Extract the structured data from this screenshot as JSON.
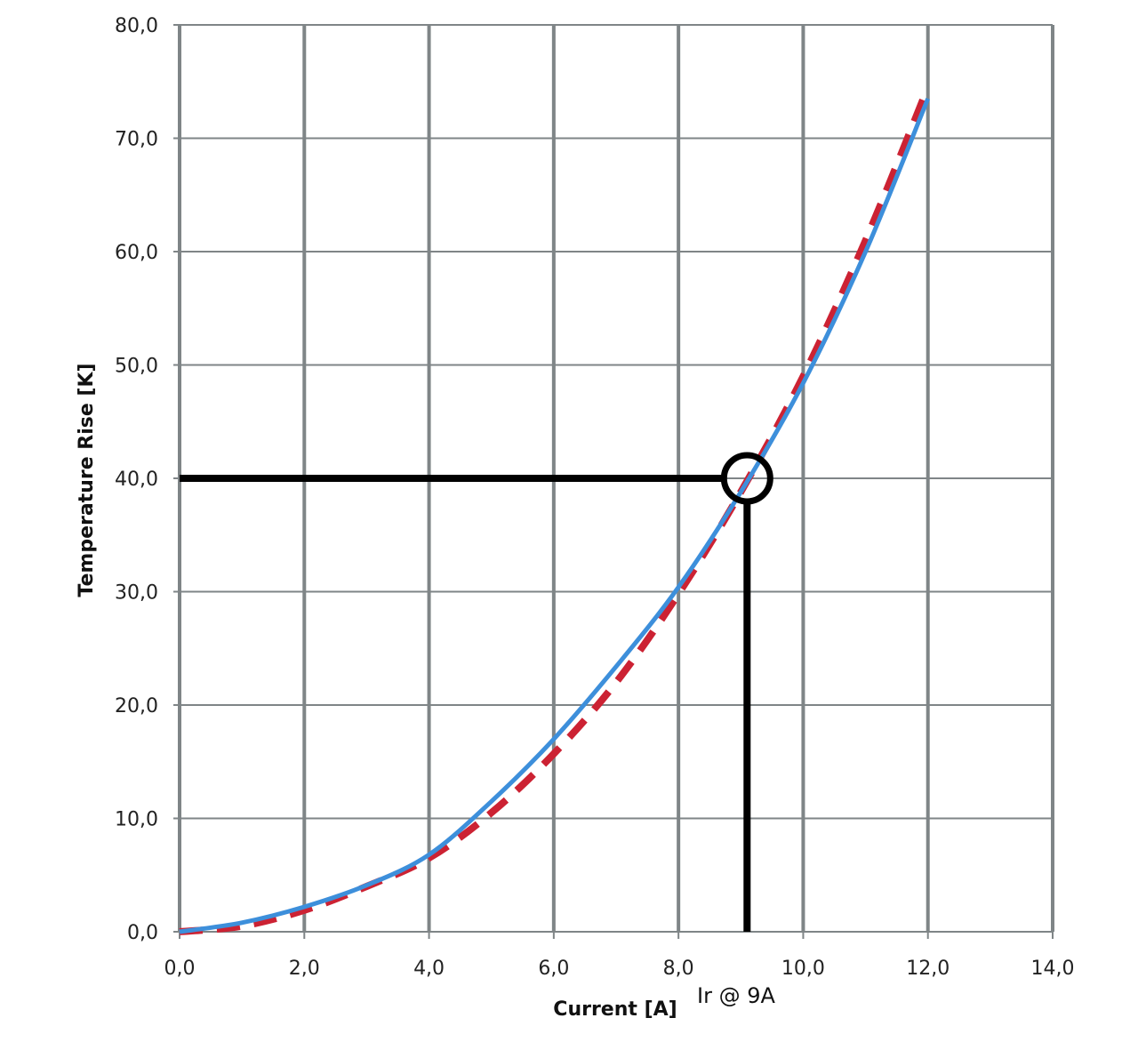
{
  "chart_data": {
    "type": "line",
    "xlabel": "Current [A]",
    "ylabel": "Temperature Rise [K]",
    "xlim": [
      0,
      14
    ],
    "ylim": [
      0,
      80
    ],
    "grid": true,
    "x_ticks": [
      "0,0",
      "2,0",
      "4,0",
      "6,0",
      "8,0",
      "10,0",
      "12,0",
      "14,0"
    ],
    "y_ticks": [
      "0,0",
      "10,0",
      "20,0",
      "30,0",
      "40,0",
      "50,0",
      "60,0",
      "70,0",
      "80,0"
    ],
    "series": [
      {
        "color": "#3d8fdb",
        "style": "solid",
        "x": [
          0,
          1,
          2,
          3,
          4,
          5,
          6,
          7,
          8,
          9,
          10,
          11,
          12
        ],
        "y": [
          0,
          0.8,
          2.2,
          4.1,
          6.8,
          11.5,
          17,
          23.4,
          30.4,
          38.8,
          48.4,
          60,
          73.5
        ]
      },
      {
        "color": "#cc2233",
        "style": "dashed",
        "x": [
          0,
          1,
          2,
          3,
          4,
          5,
          6,
          7,
          8,
          9,
          10,
          11,
          12
        ],
        "y": [
          0,
          0.5,
          1.9,
          4.0,
          6.5,
          10.5,
          15.7,
          22,
          29.8,
          38.8,
          49.0,
          61.0,
          74.5
        ]
      }
    ],
    "annotations": [
      {
        "text": "Ir @ 9A",
        "marker_x": 9.1,
        "marker_y": 40
      }
    ]
  }
}
